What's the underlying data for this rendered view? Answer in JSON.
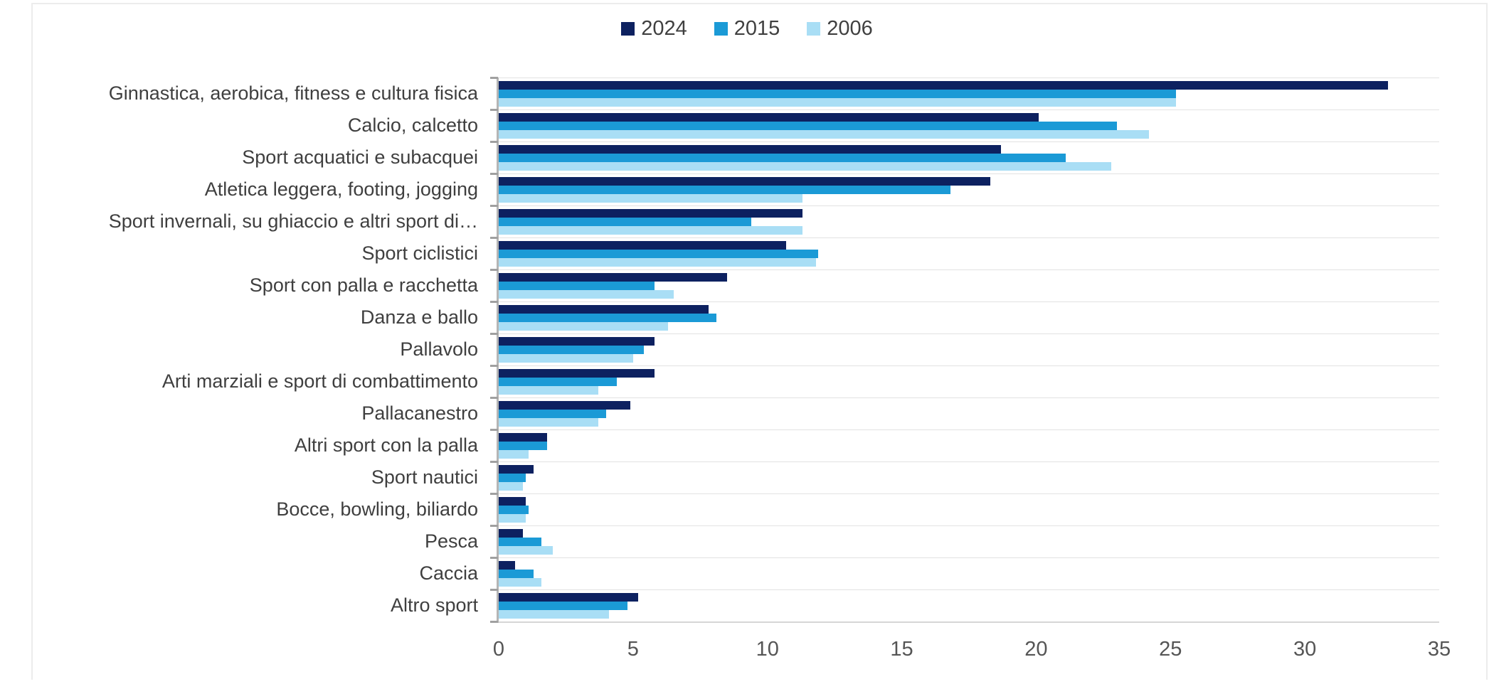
{
  "chart_data": {
    "type": "bar",
    "orientation": "horizontal",
    "title": "",
    "legend_position": "top-center",
    "grid": "horizontal category separator lines only",
    "xlim": [
      0,
      35
    ],
    "x_ticks": [
      0,
      5,
      10,
      15,
      20,
      25,
      30,
      35
    ],
    "categories": [
      "Ginnastica, aerobica, fitness e cultura fisica",
      "Calcio, calcetto",
      "Sport acquatici e subacquei",
      "Atletica leggera, footing, jogging",
      "Sport invernali, su ghiaccio e altri sport di…",
      "Sport ciclistici",
      "Sport con palla e racchetta",
      "Danza e ballo",
      "Pallavolo",
      "Arti marziali e sport di combattimento",
      "Pallacanestro",
      "Altri sport con la palla",
      "Sport nautici",
      "Bocce, bowling, biliardo",
      "Pesca",
      "Caccia",
      "Altro sport"
    ],
    "series": [
      {
        "name": "2024",
        "color": "#0d2160",
        "values": [
          33.1,
          20.1,
          18.7,
          18.3,
          11.3,
          10.7,
          8.5,
          7.8,
          5.8,
          5.8,
          4.9,
          1.8,
          1.3,
          1.0,
          0.9,
          0.6,
          5.2
        ]
      },
      {
        "name": "2015",
        "color": "#1b9ad6",
        "values": [
          25.2,
          23.0,
          21.1,
          16.8,
          9.4,
          11.9,
          5.8,
          8.1,
          5.4,
          4.4,
          4.0,
          1.8,
          1.0,
          1.1,
          1.6,
          1.3,
          4.8
        ]
      },
      {
        "name": "2006",
        "color": "#a9def5",
        "values": [
          25.2,
          24.2,
          22.8,
          11.3,
          11.3,
          11.8,
          6.5,
          6.3,
          5.0,
          3.7,
          3.7,
          1.1,
          0.9,
          1.0,
          2.0,
          1.6,
          4.1
        ]
      }
    ],
    "colors": {
      "gridline": "#e2e2e2",
      "axis_line": "#b5b5b5",
      "tick_stub": "#a0a0a0",
      "label_text": "#3f3f3f",
      "tick_text": "#555555",
      "panel_border": "#ececec"
    }
  }
}
